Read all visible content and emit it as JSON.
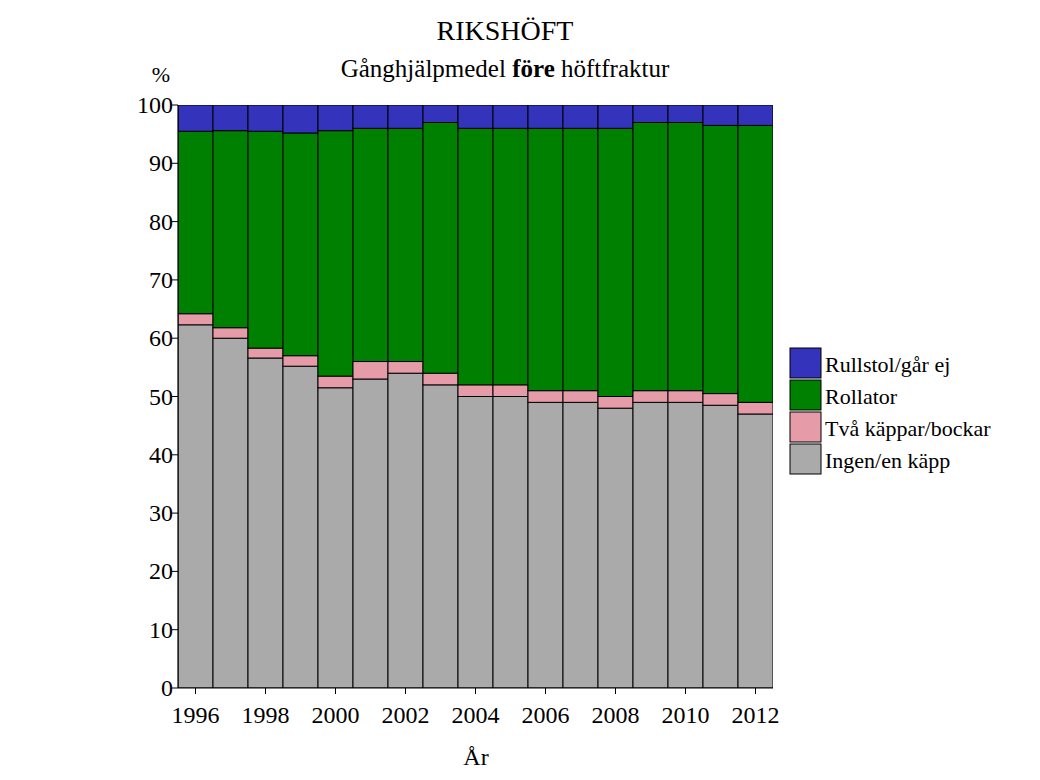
{
  "chart_data": {
    "type": "bar",
    "stacked": true,
    "title": "RIKSHÖFT",
    "subtitle": "Gånghjälpmedel före höftfraktur",
    "x_label": "År",
    "y_label": "%",
    "categories": [
      "1996",
      null,
      "1998",
      null,
      "2000",
      null,
      "2002",
      null,
      "2004",
      null,
      "2006",
      null,
      "2008",
      null,
      "2010",
      null,
      "2012"
    ],
    "series": [
      {
        "name": "Ingen/en käpp",
        "color": "#aaaaaa",
        "values": [
          62.3,
          60,
          56.6,
          55.2,
          51.5,
          53,
          54,
          52,
          50,
          50,
          49,
          49,
          48,
          49,
          49,
          48.5,
          47
        ]
      },
      {
        "name": "Två käppar/bockar",
        "color": "#e69ca8",
        "values": [
          1.9,
          1.8,
          1.7,
          1.8,
          2,
          3,
          2,
          2,
          2,
          2,
          2,
          2,
          2,
          2,
          2,
          2,
          2
        ]
      },
      {
        "name": "Rollator",
        "color": "#008000",
        "values": [
          31.3,
          33.8,
          37.2,
          38.2,
          42.1,
          40,
          40,
          43,
          44,
          44,
          45,
          45,
          46,
          46,
          46,
          46,
          47.5
        ]
      },
      {
        "name": "Rullstol/går ej",
        "color": "#3333bb",
        "values": [
          4.5,
          4.4,
          4.5,
          4.8,
          4.4,
          4,
          4,
          3,
          4,
          4,
          4,
          4,
          4,
          3,
          3,
          3.5,
          3.5
        ]
      }
    ],
    "ylim": [
      0,
      100
    ],
    "yticks": [
      0,
      10,
      20,
      30,
      40,
      50,
      60,
      70,
      80,
      90,
      100
    ],
    "grid": false,
    "legend": "right"
  }
}
